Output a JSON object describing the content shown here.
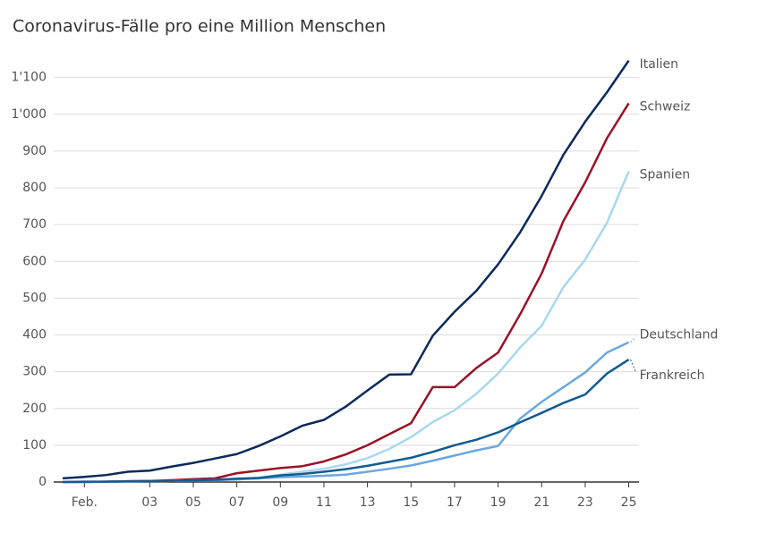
{
  "chart_data": {
    "type": "line",
    "title": "Coronavirus-Fälle pro eine Million Menschen",
    "categories": [
      null,
      "Feb.",
      null,
      null,
      "03",
      null,
      "05",
      null,
      "07",
      null,
      "09",
      null,
      "11",
      null,
      "13",
      null,
      "15",
      null,
      "17",
      null,
      "19",
      null,
      "21",
      null,
      "23",
      null,
      "25"
    ],
    "ylim": [
      0,
      1160
    ],
    "yticks": [
      0,
      100,
      200,
      300,
      400,
      500,
      600,
      700,
      800,
      900,
      {
        "value": 1000,
        "label": "1'000"
      },
      {
        "value": 1100,
        "label": "1'100"
      }
    ],
    "grid": true,
    "series": [
      {
        "name": "Italien",
        "color": "#0b2a5b",
        "values": [
          10,
          14,
          19,
          28,
          31,
          42,
          52,
          64,
          76,
          98,
          124,
          153,
          169,
          205,
          249,
          292,
          293,
          398,
          463,
          520,
          592,
          678,
          778,
          890,
          980,
          1060,
          1146
        ]
      },
      {
        "name": "Schweiz",
        "color": "#9b1029",
        "values": [
          0,
          0,
          1,
          2,
          3,
          5,
          8,
          10,
          24,
          31,
          38,
          43,
          56,
          75,
          100,
          130,
          160,
          258,
          258,
          310,
          352,
          455,
          567,
          710,
          815,
          935,
          1030
        ]
      },
      {
        "name": "Spanien",
        "color": "#a8d8f0",
        "values": [
          0,
          0,
          1,
          1,
          2,
          3,
          5,
          6,
          8,
          12,
          20,
          28,
          36,
          48,
          65,
          90,
          122,
          163,
          195,
          240,
          295,
          365,
          425,
          530,
          605,
          705,
          845
        ]
      },
      {
        "name": "Deutschland",
        "color": "#6aa8e0",
        "values": [
          0,
          0,
          1,
          1,
          2,
          3,
          4,
          5,
          7,
          10,
          13,
          15,
          17,
          20,
          28,
          36,
          45,
          58,
          72,
          86,
          98,
          172,
          218,
          258,
          298,
          352,
          380
        ]
      },
      {
        "name": "Frankreich",
        "color": "#135b91",
        "values": [
          0,
          1,
          1,
          2,
          2,
          3,
          5,
          6,
          9,
          11,
          18,
          22,
          28,
          35,
          44,
          55,
          66,
          82,
          100,
          115,
          135,
          162,
          188,
          215,
          238,
          295,
          333
        ]
      }
    ]
  }
}
